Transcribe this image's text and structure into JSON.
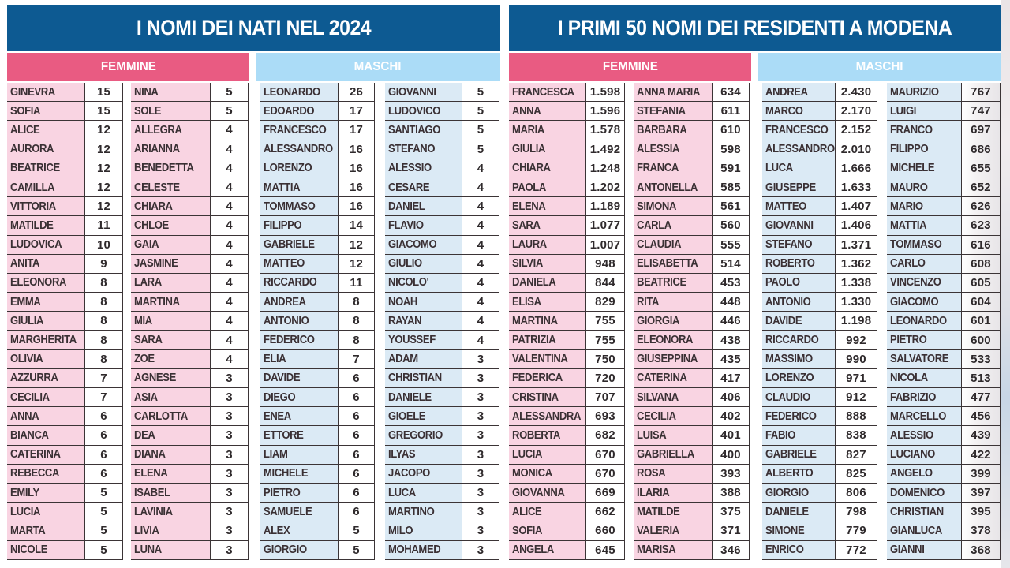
{
  "left_panel": {
    "title": "I NOMI DEI NATI NEL 2024",
    "femmine_label": "FEMMINE",
    "maschi_label": "MASCHI",
    "femmine": [
      [
        {
          "name": "GINEVRA",
          "count": "15"
        },
        {
          "name": "SOFIA",
          "count": "15"
        },
        {
          "name": "ALICE",
          "count": "12"
        },
        {
          "name": "AURORA",
          "count": "12"
        },
        {
          "name": "BEATRICE",
          "count": "12"
        },
        {
          "name": "CAMILLA",
          "count": "12"
        },
        {
          "name": "VITTORIA",
          "count": "12"
        },
        {
          "name": "MATILDE",
          "count": "11"
        },
        {
          "name": "LUDOVICA",
          "count": "10"
        },
        {
          "name": "ANITA",
          "count": "9"
        },
        {
          "name": "ELEONORA",
          "count": "8"
        },
        {
          "name": "EMMA",
          "count": "8"
        },
        {
          "name": "GIULIA",
          "count": "8"
        },
        {
          "name": "MARGHERITA",
          "count": "8"
        },
        {
          "name": "OLIVIA",
          "count": "8"
        },
        {
          "name": "AZZURRA",
          "count": "7"
        },
        {
          "name": "CECILIA",
          "count": "7"
        },
        {
          "name": "ANNA",
          "count": "6"
        },
        {
          "name": "BIANCA",
          "count": "6"
        },
        {
          "name": "CATERINA",
          "count": "6"
        },
        {
          "name": "REBECCA",
          "count": "6"
        },
        {
          "name": "EMILY",
          "count": "5"
        },
        {
          "name": "LUCIA",
          "count": "5"
        },
        {
          "name": "MARTA",
          "count": "5"
        },
        {
          "name": "NICOLE",
          "count": "5"
        }
      ],
      [
        {
          "name": "NINA",
          "count": "5"
        },
        {
          "name": "SOLE",
          "count": "5"
        },
        {
          "name": "ALLEGRA",
          "count": "4"
        },
        {
          "name": "ARIANNA",
          "count": "4"
        },
        {
          "name": "BENEDETTA",
          "count": "4"
        },
        {
          "name": "CELESTE",
          "count": "4"
        },
        {
          "name": "CHIARA",
          "count": "4"
        },
        {
          "name": "CHLOE",
          "count": "4"
        },
        {
          "name": "GAIA",
          "count": "4"
        },
        {
          "name": "JASMINE",
          "count": "4"
        },
        {
          "name": "LARA",
          "count": "4"
        },
        {
          "name": "MARTINA",
          "count": "4"
        },
        {
          "name": "MIA",
          "count": "4"
        },
        {
          "name": "SARA",
          "count": "4"
        },
        {
          "name": "ZOE",
          "count": "4"
        },
        {
          "name": "AGNESE",
          "count": "3"
        },
        {
          "name": "ASIA",
          "count": "3"
        },
        {
          "name": "CARLOTTA",
          "count": "3"
        },
        {
          "name": "DEA",
          "count": "3"
        },
        {
          "name": "DIANA",
          "count": "3"
        },
        {
          "name": "ELENA",
          "count": "3"
        },
        {
          "name": "ISABEL",
          "count": "3"
        },
        {
          "name": "LAVINIA",
          "count": "3"
        },
        {
          "name": "LIVIA",
          "count": "3"
        },
        {
          "name": "LUNA",
          "count": "3"
        }
      ]
    ],
    "maschi": [
      [
        {
          "name": "LEONARDO",
          "count": "26"
        },
        {
          "name": "EDOARDO",
          "count": "17"
        },
        {
          "name": "FRANCESCO",
          "count": "17"
        },
        {
          "name": "ALESSANDRO",
          "count": "16"
        },
        {
          "name": "LORENZO",
          "count": "16"
        },
        {
          "name": "MATTIA",
          "count": "16"
        },
        {
          "name": "TOMMASO",
          "count": "16"
        },
        {
          "name": "FILIPPO",
          "count": "14"
        },
        {
          "name": "GABRIELE",
          "count": "12"
        },
        {
          "name": "MATTEO",
          "count": "12"
        },
        {
          "name": "RICCARDO",
          "count": "11"
        },
        {
          "name": "ANDREA",
          "count": "8"
        },
        {
          "name": "ANTONIO",
          "count": "8"
        },
        {
          "name": "FEDERICO",
          "count": "8"
        },
        {
          "name": "ELIA",
          "count": "7"
        },
        {
          "name": "DAVIDE",
          "count": "6"
        },
        {
          "name": "DIEGO",
          "count": "6"
        },
        {
          "name": "ENEA",
          "count": "6"
        },
        {
          "name": "ETTORE",
          "count": "6"
        },
        {
          "name": "LIAM",
          "count": "6"
        },
        {
          "name": "MICHELE",
          "count": "6"
        },
        {
          "name": "PIETRO",
          "count": "6"
        },
        {
          "name": "SAMUELE",
          "count": "6"
        },
        {
          "name": "ALEX",
          "count": "5"
        },
        {
          "name": "GIORGIO",
          "count": "5"
        }
      ],
      [
        {
          "name": "GIOVANNI",
          "count": "5"
        },
        {
          "name": "LUDOVICO",
          "count": "5"
        },
        {
          "name": "SANTIAGO",
          "count": "5"
        },
        {
          "name": "STEFANO",
          "count": "5"
        },
        {
          "name": "ALESSIO",
          "count": "4"
        },
        {
          "name": "CESARE",
          "count": "4"
        },
        {
          "name": "DANIEL",
          "count": "4"
        },
        {
          "name": "FLAVIO",
          "count": "4"
        },
        {
          "name": "GIACOMO",
          "count": "4"
        },
        {
          "name": "GIULIO",
          "count": "4"
        },
        {
          "name": "NICOLO'",
          "count": "4"
        },
        {
          "name": "NOAH",
          "count": "4"
        },
        {
          "name": "RAYAN",
          "count": "4"
        },
        {
          "name": "YOUSSEF",
          "count": "4"
        },
        {
          "name": "ADAM",
          "count": "3"
        },
        {
          "name": "CHRISTIAN",
          "count": "3"
        },
        {
          "name": "DANIELE",
          "count": "3"
        },
        {
          "name": "GIOELE",
          "count": "3"
        },
        {
          "name": "GREGORIO",
          "count": "3"
        },
        {
          "name": "ILYAS",
          "count": "3"
        },
        {
          "name": "JACOPO",
          "count": "3"
        },
        {
          "name": "LUCA",
          "count": "3"
        },
        {
          "name": "MARTINO",
          "count": "3"
        },
        {
          "name": "MILO",
          "count": "3"
        },
        {
          "name": "MOHAMED",
          "count": "3"
        }
      ]
    ]
  },
  "right_panel": {
    "title": "I PRIMI 50 NOMI DEI RESIDENTI A MODENA",
    "femmine_label": "FEMMINE",
    "maschi_label": "MASCHI",
    "femmine": [
      [
        {
          "name": "FRANCESCA",
          "count": "1.598"
        },
        {
          "name": "ANNA",
          "count": "1.596"
        },
        {
          "name": "MARIA",
          "count": "1.578"
        },
        {
          "name": "GIULIA",
          "count": "1.492"
        },
        {
          "name": "CHIARA",
          "count": "1.248"
        },
        {
          "name": "PAOLA",
          "count": "1.202"
        },
        {
          "name": "ELENA",
          "count": "1.189"
        },
        {
          "name": "SARA",
          "count": "1.077"
        },
        {
          "name": "LAURA",
          "count": "1.007"
        },
        {
          "name": "SILVIA",
          "count": "948"
        },
        {
          "name": "DANIELA",
          "count": "844"
        },
        {
          "name": "ELISA",
          "count": "829"
        },
        {
          "name": "MARTINA",
          "count": "755"
        },
        {
          "name": "PATRIZIA",
          "count": "755"
        },
        {
          "name": "VALENTINA",
          "count": "750"
        },
        {
          "name": "FEDERICA",
          "count": "720"
        },
        {
          "name": "CRISTINA",
          "count": "707"
        },
        {
          "name": "ALESSANDRA",
          "count": "693"
        },
        {
          "name": "ROBERTA",
          "count": "682"
        },
        {
          "name": "LUCIA",
          "count": "670"
        },
        {
          "name": "MONICA",
          "count": "670"
        },
        {
          "name": "GIOVANNA",
          "count": "669"
        },
        {
          "name": "ALICE",
          "count": "662"
        },
        {
          "name": "SOFIA",
          "count": "660"
        },
        {
          "name": "ANGELA",
          "count": "645"
        }
      ],
      [
        {
          "name": "ANNA MARIA",
          "count": "634"
        },
        {
          "name": "STEFANIA",
          "count": "611"
        },
        {
          "name": "BARBARA",
          "count": "610"
        },
        {
          "name": "ALESSIA",
          "count": "598"
        },
        {
          "name": "FRANCA",
          "count": "591"
        },
        {
          "name": "ANTONELLA",
          "count": "585"
        },
        {
          "name": "SIMONA",
          "count": "561"
        },
        {
          "name": "CARLA",
          "count": "560"
        },
        {
          "name": "CLAUDIA",
          "count": "555"
        },
        {
          "name": "ELISABETTA",
          "count": "514"
        },
        {
          "name": "BEATRICE",
          "count": "453"
        },
        {
          "name": "RITA",
          "count": "448"
        },
        {
          "name": "GIORGIA",
          "count": "446"
        },
        {
          "name": "ELEONORA",
          "count": "438"
        },
        {
          "name": "GIUSEPPINA",
          "count": "435"
        },
        {
          "name": "CATERINA",
          "count": "417"
        },
        {
          "name": "SILVANA",
          "count": "406"
        },
        {
          "name": "CECILIA",
          "count": "402"
        },
        {
          "name": "LUISA",
          "count": "401"
        },
        {
          "name": "GABRIELLA",
          "count": "400"
        },
        {
          "name": "ROSA",
          "count": "393"
        },
        {
          "name": "ILARIA",
          "count": "388"
        },
        {
          "name": "MATILDE",
          "count": "375"
        },
        {
          "name": "VALERIA",
          "count": "371"
        },
        {
          "name": "MARISA",
          "count": "346"
        }
      ]
    ],
    "maschi": [
      [
        {
          "name": "ANDREA",
          "count": "2.430"
        },
        {
          "name": "MARCO",
          "count": "2.170"
        },
        {
          "name": "FRANCESCO",
          "count": "2.152"
        },
        {
          "name": "ALESSANDRO",
          "count": "2.010"
        },
        {
          "name": "LUCA",
          "count": "1.666"
        },
        {
          "name": "GIUSEPPE",
          "count": "1.633"
        },
        {
          "name": "MATTEO",
          "count": "1.407"
        },
        {
          "name": "GIOVANNI",
          "count": "1.406"
        },
        {
          "name": "STEFANO",
          "count": "1.371"
        },
        {
          "name": "ROBERTO",
          "count": "1.362"
        },
        {
          "name": "PAOLO",
          "count": "1.338"
        },
        {
          "name": "ANTONIO",
          "count": "1.330"
        },
        {
          "name": "DAVIDE",
          "count": "1.198"
        },
        {
          "name": "RICCARDO",
          "count": "992"
        },
        {
          "name": "MASSIMO",
          "count": "990"
        },
        {
          "name": "LORENZO",
          "count": "971"
        },
        {
          "name": "CLAUDIO",
          "count": "912"
        },
        {
          "name": "FEDERICO",
          "count": "888"
        },
        {
          "name": "FABIO",
          "count": "838"
        },
        {
          "name": "GABRIELE",
          "count": "827"
        },
        {
          "name": "ALBERTO",
          "count": "825"
        },
        {
          "name": "GIORGIO",
          "count": "806"
        },
        {
          "name": "DANIELE",
          "count": "798"
        },
        {
          "name": "SIMONE",
          "count": "779"
        },
        {
          "name": "ENRICO",
          "count": "772"
        }
      ],
      [
        {
          "name": "MAURIZIO",
          "count": "767"
        },
        {
          "name": "LUIGI",
          "count": "747"
        },
        {
          "name": "FRANCO",
          "count": "697"
        },
        {
          "name": "FILIPPO",
          "count": "686"
        },
        {
          "name": "MICHELE",
          "count": "655"
        },
        {
          "name": "MAURO",
          "count": "652"
        },
        {
          "name": "MARIO",
          "count": "626"
        },
        {
          "name": "MATTIA",
          "count": "623"
        },
        {
          "name": "TOMMASO",
          "count": "616"
        },
        {
          "name": "CARLO",
          "count": "608"
        },
        {
          "name": "VINCENZO",
          "count": "605"
        },
        {
          "name": "GIACOMO",
          "count": "604"
        },
        {
          "name": "LEONARDO",
          "count": "601"
        },
        {
          "name": "PIETRO",
          "count": "600"
        },
        {
          "name": "SALVATORE",
          "count": "533"
        },
        {
          "name": "NICOLA",
          "count": "513"
        },
        {
          "name": "FABRIZIO",
          "count": "477"
        },
        {
          "name": "MARCELLO",
          "count": "456"
        },
        {
          "name": "ALESSIO",
          "count": "439"
        },
        {
          "name": "LUCIANO",
          "count": "422"
        },
        {
          "name": "ANGELO",
          "count": "399"
        },
        {
          "name": "DOMENICO",
          "count": "397"
        },
        {
          "name": "CHRISTIAN",
          "count": "395"
        },
        {
          "name": "GIANLUCA",
          "count": "378"
        },
        {
          "name": "GIANNI",
          "count": "368"
        }
      ]
    ]
  },
  "colors": {
    "title_bg": "#0d5a92",
    "femmine_header": "#e95b82",
    "maschi_header": "#abdcf7",
    "femmine_cell": "#f9d4e2",
    "maschi_cell": "#dbeaf5",
    "grid_line": "#3b3436"
  }
}
